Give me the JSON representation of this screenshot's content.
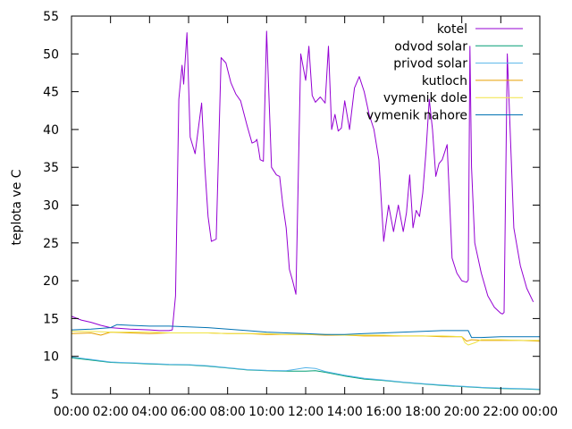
{
  "chart_data": {
    "type": "line",
    "title": "",
    "xlabel": "",
    "ylabel": "teplota ve C",
    "xlim": [
      "00:00",
      "24:00"
    ],
    "ylim": [
      5,
      55
    ],
    "x_ticks": [
      "00:00",
      "02:00",
      "04:00",
      "06:00",
      "08:00",
      "10:00",
      "12:00",
      "14:00",
      "16:00",
      "18:00",
      "20:00",
      "22:00",
      "00:00"
    ],
    "y_ticks": [
      5,
      10,
      15,
      20,
      25,
      30,
      35,
      40,
      45,
      50,
      55
    ],
    "grid": false,
    "legend_position": "top-right",
    "series": [
      {
        "name": "kotel",
        "color": "#9400d3",
        "x": [
          "00:00",
          "00:30",
          "01:00",
          "01:30",
          "02:00",
          "03:00",
          "04:00",
          "04:30",
          "05:00",
          "05:10",
          "05:20",
          "05:30",
          "05:40",
          "05:45",
          "05:55",
          "06:05",
          "06:20",
          "06:40",
          "06:50",
          "07:00",
          "07:10",
          "07:25",
          "07:40",
          "07:55",
          "08:10",
          "08:25",
          "08:40",
          "09:00",
          "09:15",
          "09:25",
          "09:30",
          "09:35",
          "09:40",
          "09:50",
          "10:00",
          "10:15",
          "10:30",
          "10:40",
          "10:50",
          "11:00",
          "11:10",
          "11:20",
          "11:30",
          "11:45",
          "12:00",
          "12:10",
          "12:20",
          "12:30",
          "12:45",
          "13:00",
          "13:10",
          "13:20",
          "13:30",
          "13:40",
          "13:50",
          "14:00",
          "14:15",
          "14:30",
          "14:45",
          "15:00",
          "15:15",
          "15:30",
          "15:45",
          "16:00",
          "16:15",
          "16:30",
          "16:45",
          "17:00",
          "17:10",
          "17:20",
          "17:30",
          "17:40",
          "17:50",
          "18:00",
          "18:10",
          "18:20",
          "18:30",
          "18:40",
          "18:50",
          "19:00",
          "19:15",
          "19:30",
          "19:45",
          "20:00",
          "20:15",
          "20:20",
          "20:25",
          "20:30",
          "20:40",
          "21:00",
          "21:20",
          "21:40",
          "22:00",
          "22:05",
          "22:10",
          "22:20",
          "22:40",
          "23:00",
          "23:20",
          "23:40"
        ],
        "y": [
          15.3,
          14.8,
          14.5,
          14.1,
          13.8,
          13.6,
          13.5,
          13.4,
          13.4,
          13.5,
          18,
          44,
          48.5,
          46,
          52.8,
          39,
          36.8,
          43.5,
          35,
          28.5,
          25.2,
          25.5,
          49.5,
          48.8,
          46.2,
          44.7,
          43.8,
          40.5,
          38.2,
          38.4,
          38.7,
          37.5,
          36,
          35.8,
          53,
          35,
          34,
          33.8,
          30,
          27,
          21.5,
          20,
          18.2,
          50,
          46.5,
          51,
          44.5,
          43.6,
          44.3,
          43.5,
          51,
          40,
          42,
          39.8,
          40.2,
          43.8,
          40,
          45.5,
          47,
          45,
          42,
          40,
          36,
          25.2,
          30,
          26.5,
          30,
          26.5,
          29,
          34,
          27,
          29.3,
          28.5,
          31.6,
          37,
          44,
          40,
          33.8,
          35.5,
          36,
          38,
          23,
          21,
          20,
          19.8,
          20.1,
          51,
          35,
          25,
          21,
          18,
          16.5,
          15.7,
          15.6,
          15.8,
          50,
          27,
          22,
          19,
          17.2
        ]
      },
      {
        "name": "odvod solar",
        "color": "#009e73",
        "x": [
          "00:00",
          "01:00",
          "02:00",
          "02:30",
          "03:00",
          "04:00",
          "05:00",
          "06:00",
          "07:00",
          "08:00",
          "09:00",
          "10:00",
          "11:00",
          "12:00",
          "12:30",
          "13:00",
          "14:00",
          "15:00",
          "16:00",
          "17:00",
          "18:00",
          "19:00",
          "20:00",
          "21:00",
          "22:00",
          "23:00",
          "24:00"
        ],
        "y": [
          9.8,
          9.5,
          9.2,
          9.15,
          9.1,
          9.0,
          8.9,
          8.85,
          8.7,
          8.45,
          8.2,
          8.1,
          8.05,
          8.05,
          8.1,
          7.9,
          7.4,
          7.0,
          6.8,
          6.55,
          6.35,
          6.15,
          6.0,
          5.85,
          5.75,
          5.7,
          5.6
        ]
      },
      {
        "name": "privod solar",
        "color": "#56b4e9",
        "x": [
          "00:00",
          "01:00",
          "02:00",
          "02:30",
          "03:00",
          "04:00",
          "05:00",
          "06:00",
          "07:00",
          "08:00",
          "09:00",
          "10:00",
          "11:00",
          "11:30",
          "12:00",
          "12:30",
          "13:00",
          "14:00",
          "15:00",
          "16:00",
          "17:00",
          "18:00",
          "19:00",
          "20:00",
          "21:00",
          "22:00",
          "23:00",
          "24:00"
        ],
        "y": [
          9.9,
          9.6,
          9.25,
          9.2,
          9.15,
          9.05,
          8.95,
          8.9,
          8.75,
          8.5,
          8.25,
          8.15,
          8.1,
          8.3,
          8.5,
          8.4,
          8.0,
          7.5,
          7.1,
          6.85,
          6.6,
          6.4,
          6.2,
          6.05,
          5.9,
          5.8,
          5.75,
          5.65
        ]
      },
      {
        "name": "kutloch",
        "color": "#e69f00",
        "x": [
          "00:00",
          "01:00",
          "01:30",
          "02:00",
          "03:00",
          "04:00",
          "05:00",
          "06:00",
          "07:00",
          "08:00",
          "09:00",
          "10:00",
          "11:00",
          "12:00",
          "13:00",
          "14:00",
          "15:00",
          "16:00",
          "17:00",
          "18:00",
          "19:00",
          "20:00",
          "20:15",
          "20:30",
          "21:00",
          "22:00",
          "23:00",
          "24:00"
        ],
        "y": [
          13.0,
          13.1,
          12.8,
          13.2,
          13.1,
          13.0,
          13.1,
          13.1,
          13.1,
          13.0,
          13.0,
          12.9,
          12.9,
          12.9,
          12.8,
          12.8,
          12.7,
          12.7,
          12.7,
          12.7,
          12.6,
          12.6,
          12.0,
          12.2,
          12.1,
          12.1,
          12.1,
          12.0
        ]
      },
      {
        "name": "vymenik dole",
        "color": "#f0e442",
        "x": [
          "00:00",
          "01:00",
          "02:00",
          "03:00",
          "04:00",
          "05:00",
          "06:00",
          "07:00",
          "08:00",
          "09:00",
          "10:00",
          "11:00",
          "12:00",
          "13:00",
          "14:00",
          "15:00",
          "16:00",
          "17:00",
          "18:00",
          "19:00",
          "20:00",
          "20:10",
          "20:20",
          "20:40",
          "21:00",
          "22:00",
          "23:00",
          "24:00"
        ],
        "y": [
          13.3,
          13.3,
          13.2,
          13.2,
          13.2,
          13.1,
          13.1,
          13.1,
          13.0,
          13.0,
          13.0,
          12.9,
          12.9,
          12.9,
          12.8,
          12.8,
          12.8,
          12.7,
          12.7,
          12.7,
          12.6,
          11.8,
          11.5,
          11.8,
          12.2,
          12.2,
          12.1,
          12.1
        ]
      },
      {
        "name": "vymenik nahore",
        "color": "#0072b2",
        "x": [
          "00:00",
          "01:00",
          "02:00",
          "02:20",
          "03:00",
          "04:00",
          "05:00",
          "06:00",
          "07:00",
          "08:00",
          "09:00",
          "10:00",
          "11:00",
          "12:00",
          "13:00",
          "14:00",
          "15:00",
          "16:00",
          "17:00",
          "18:00",
          "19:00",
          "20:00",
          "20:20",
          "20:30",
          "21:00",
          "22:00",
          "23:00",
          "24:00"
        ],
        "y": [
          13.5,
          13.6,
          13.8,
          14.2,
          14.1,
          14.0,
          14.0,
          13.9,
          13.8,
          13.6,
          13.4,
          13.2,
          13.1,
          13.0,
          12.9,
          12.9,
          13.0,
          13.1,
          13.2,
          13.3,
          13.4,
          13.4,
          13.4,
          12.5,
          12.5,
          12.6,
          12.6,
          12.6
        ]
      }
    ]
  }
}
